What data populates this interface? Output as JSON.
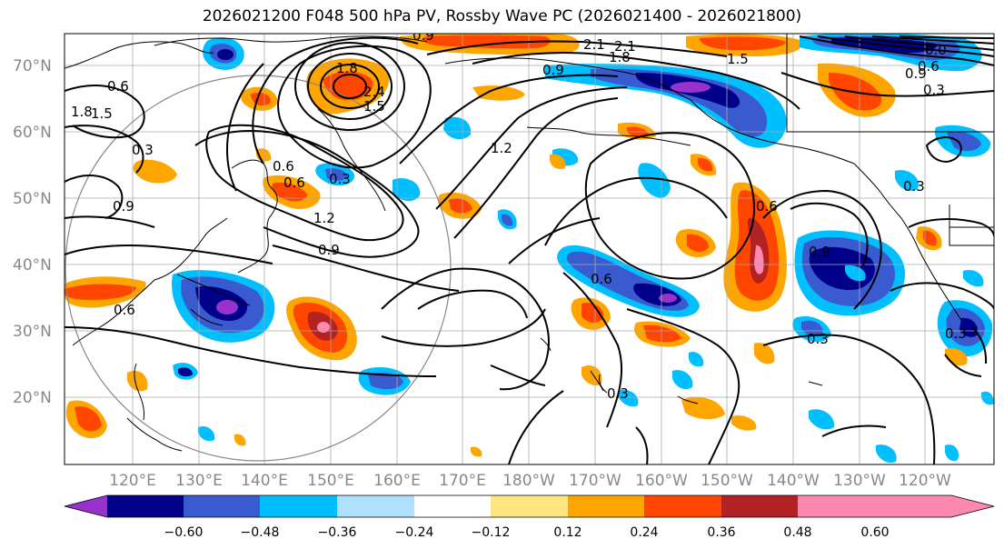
{
  "title": "2026021200 F048 500 hPa PV, Rossby Wave PC (2026021400 - 2026021800)",
  "lat_labels": [
    "70°N",
    "60°N",
    "50°N",
    "40°N",
    "30°N",
    "20°N"
  ],
  "lon_labels": [
    "120°E",
    "130°E",
    "140°E",
    "150°E",
    "160°E",
    "170°E",
    "180°W",
    "170°W",
    "160°W",
    "150°W",
    "140°W",
    "130°W",
    "120°W"
  ],
  "colorbar": {
    "ticks": [
      "−0.60",
      "−0.48",
      "−0.36",
      "−0.24",
      "−0.12",
      "0.12",
      "0.24",
      "0.36",
      "0.48",
      "0.60"
    ],
    "colors": [
      "#9932cc",
      "#00008b",
      "#3a5bd0",
      "#00bfff",
      "#b0e0ff",
      "#ffffff",
      "#ffe680",
      "#ffa500",
      "#ff4500",
      "#b22222",
      "#ff88b0"
    ]
  },
  "contour_labels": [
    "0.9",
    "1.2",
    "1.5",
    "1.8",
    "2.1",
    "2.4",
    "0.9",
    "1.8",
    "1.5",
    "2.1",
    "0.3",
    "0.6",
    "0.9",
    "1.2",
    "0.6",
    "0.3",
    "0.6",
    "0.9",
    "0.6",
    "0.3",
    "0.9",
    "0.6",
    "0.3",
    "0.3",
    "0.9",
    "0.6",
    "0.3",
    "1.5",
    "1.8",
    "0.6",
    "0.3",
    "0.0"
  ]
}
